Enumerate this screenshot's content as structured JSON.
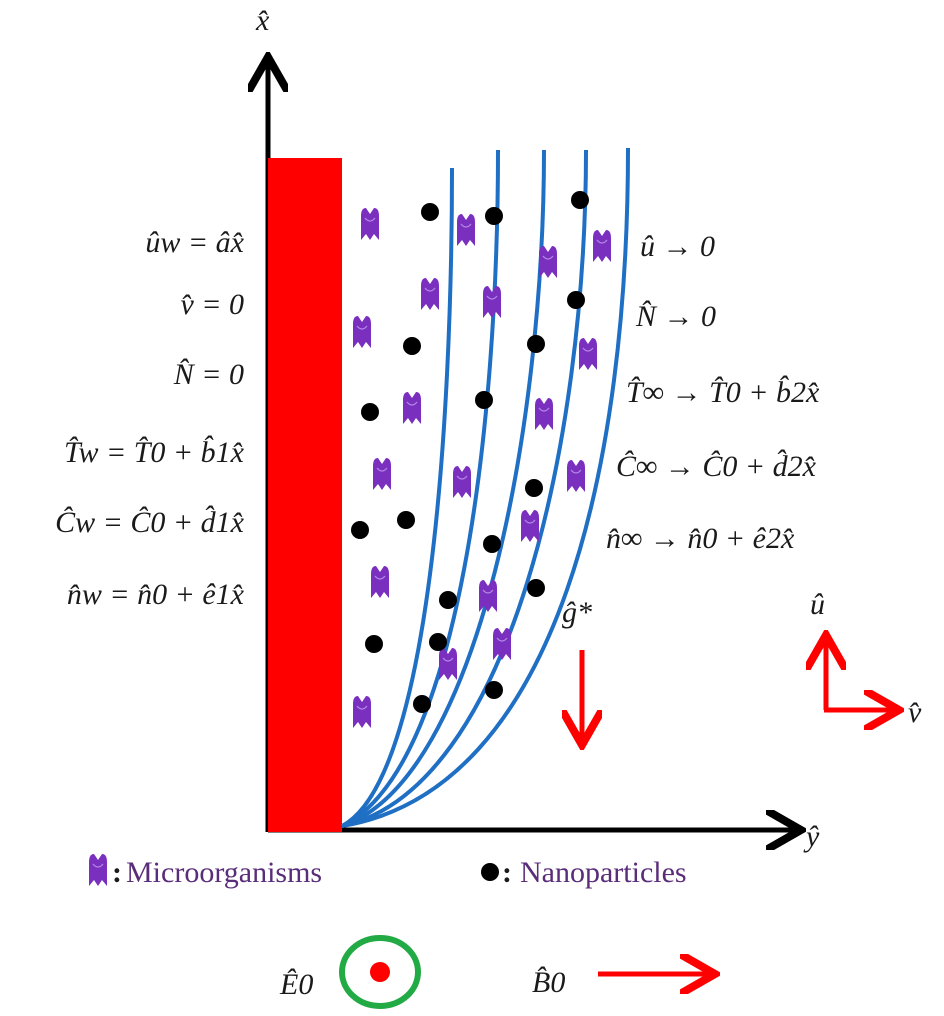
{
  "axes": {
    "x_label": "x̂",
    "y_label": "ŷ"
  },
  "wall_conditions": [
    "ûw = âx̂",
    "v̂ = 0",
    "N̂ = 0",
    "T̂w = T̂0 + b̂1x̂",
    "Ĉw = Ĉ0 + d̂1x̂",
    "n̂w = n̂0 + ê1x̂"
  ],
  "freestream_conditions": [
    "û → 0",
    "N̂ → 0",
    "T̂∞ → T̂0 + b̂2x̂",
    "Ĉ∞ → Ĉ0 + d̂2x̂",
    "n̂∞ → n̂0 + ê2x̂"
  ],
  "gravity_label": "ĝ*",
  "velocity_frame": {
    "u_label": "û",
    "v_label": "v̂"
  },
  "legend": {
    "microorganisms": "Microorganisms",
    "nanoparticles": "Nanoparticles",
    "separator": ":"
  },
  "fields": {
    "electric_label": "Ê0",
    "magnetic_label": "B̂0"
  },
  "colors": {
    "wall": "#ff0000",
    "streamline": "#1f6fc4",
    "microorganism": "#7a2fbf",
    "nanoparticle": "#000000",
    "arrow_red": "#ff0000",
    "ring_green": "#22aa44"
  }
}
